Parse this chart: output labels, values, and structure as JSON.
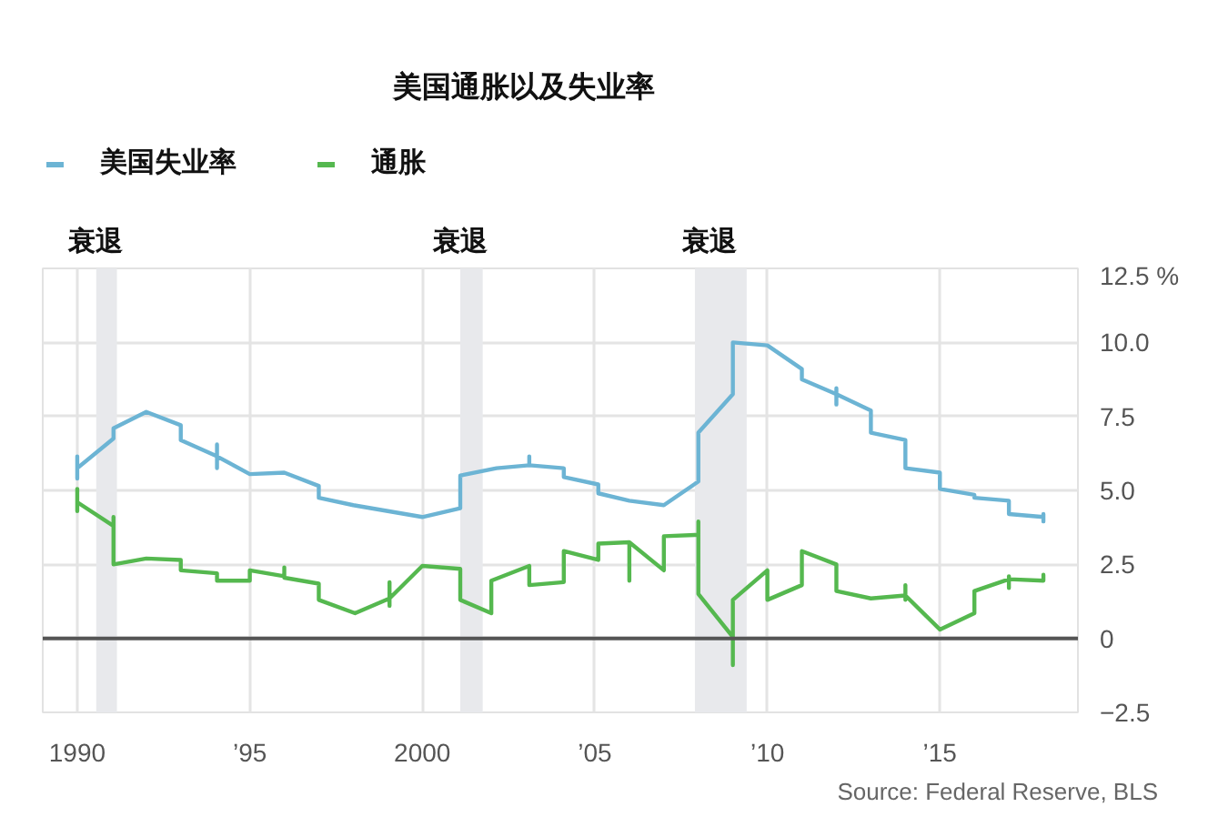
{
  "chart_data": {
    "type": "line",
    "title": "美国通胀以及失业率",
    "series": [
      {
        "name": "美国失业率",
        "color": "#6cb4d4",
        "x": [
          1990,
          1990,
          1990,
          1991.05,
          1991.05,
          1992,
          1993,
          1993,
          1994.05,
          1994.05,
          1994.05,
          1994.05,
          1995,
          1996,
          1997,
          1997,
          1998,
          1999,
          2000,
          2001.1,
          2001.1,
          2002.15,
          2003.1,
          2003.1,
          2003.1,
          2004.1,
          2004.1,
          2005.1,
          2005.1,
          2006,
          2007,
          2008,
          2008,
          2009,
          2009,
          2010,
          2011,
          2011,
          2012,
          2012,
          2012,
          2012,
          2013,
          2013,
          2014,
          2014,
          2015,
          2015,
          2016,
          2016,
          2017,
          2017,
          2018,
          2018,
          2018
        ],
        "values": [
          5.4,
          6.15,
          5.75,
          6.75,
          7.1,
          7.65,
          7.2,
          6.7,
          6.15,
          6.55,
          5.75,
          6.15,
          5.55,
          5.6,
          5.15,
          4.75,
          4.5,
          4.3,
          4.1,
          4.4,
          5.5,
          5.75,
          5.85,
          6.15,
          5.85,
          5.75,
          5.45,
          5.2,
          4.9,
          4.65,
          4.5,
          5.3,
          6.95,
          8.25,
          10.0,
          9.9,
          9.1,
          8.75,
          8.25,
          8.45,
          7.9,
          8.25,
          7.7,
          6.95,
          6.7,
          5.75,
          5.6,
          5.05,
          4.85,
          4.75,
          4.65,
          4.2,
          4.1,
          4.2,
          3.95
        ]
      },
      {
        "name": "通胀",
        "color": "#55b84f",
        "x": [
          1990,
          1990,
          1990,
          1991.05,
          1991.05,
          1991.05,
          1992,
          1993,
          1993,
          1994.05,
          1994.05,
          1995,
          1995,
          1996,
          1996,
          1996,
          1997,
          1997,
          1998.05,
          1999.05,
          1999.05,
          1999.05,
          1999.05,
          2000,
          2001.1,
          2001.1,
          2002,
          2002,
          2003.1,
          2003.1,
          2004.1,
          2004.1,
          2005.1,
          2005.1,
          2006,
          2006,
          2006,
          2007,
          2007,
          2008,
          2008,
          2008,
          2009,
          2009,
          2009,
          2010,
          2010,
          2011,
          2011,
          2012,
          2012,
          2013,
          2014,
          2014,
          2014,
          2014,
          2015,
          2016,
          2016,
          2017,
          2017,
          2017,
          2017,
          2018,
          2018
        ],
        "values": [
          5.05,
          4.3,
          4.6,
          3.8,
          4.1,
          2.5,
          2.7,
          2.65,
          2.3,
          2.2,
          1.95,
          1.95,
          2.3,
          2.1,
          2.4,
          2.05,
          1.85,
          1.3,
          0.85,
          1.35,
          1.9,
          1.1,
          1.35,
          2.45,
          2.35,
          1.3,
          0.85,
          1.95,
          2.45,
          1.8,
          1.9,
          2.95,
          2.65,
          3.2,
          3.25,
          1.95,
          3.25,
          2.3,
          3.45,
          3.5,
          3.95,
          1.5,
          0.05,
          -0.9,
          1.3,
          2.3,
          1.3,
          1.8,
          2.95,
          2.5,
          1.6,
          1.35,
          1.45,
          1.8,
          1.3,
          1.45,
          0.3,
          0.85,
          1.6,
          2.0,
          2.1,
          1.7,
          2.0,
          1.95,
          2.15
        ]
      }
    ],
    "xlim": [
      1989,
      2019
    ],
    "xticks": [
      1990,
      {
        "value": 1995,
        "label": "’95"
      },
      2000,
      {
        "value": 2005,
        "label": "’05"
      },
      {
        "value": 2010,
        "label": "’10"
      },
      {
        "value": 2015,
        "label": "’15"
      }
    ],
    "ylim": [
      -2.5,
      12.5
    ],
    "yticks": [
      -2.5,
      0,
      2.5,
      {
        "value": 5,
        "label": "5.0"
      },
      7.5,
      {
        "value": 10,
        "label": "10.0"
      },
      {
        "value": 12.5,
        "label": "12.5 %"
      }
    ],
    "grid": true,
    "legend": "top left",
    "line_style": "solid",
    "bands": [
      {
        "axis": "x",
        "from": 1990.55,
        "to": 1991.15,
        "label": "衰退",
        "color": "#e8e9ec"
      },
      {
        "axis": "x",
        "from": 2001.1,
        "to": 2001.75,
        "label": "衰退",
        "color": "#e8e9ec"
      },
      {
        "axis": "x",
        "from": 2007.9,
        "to": 2009.4,
        "label": "衰退",
        "color": "#e8e9ec"
      }
    ],
    "ref_lines": [
      {
        "axis": "y",
        "value": 0,
        "color": "#555555"
      }
    ],
    "annotations": [
      "Source: Federal Reserve, BLS"
    ]
  }
}
